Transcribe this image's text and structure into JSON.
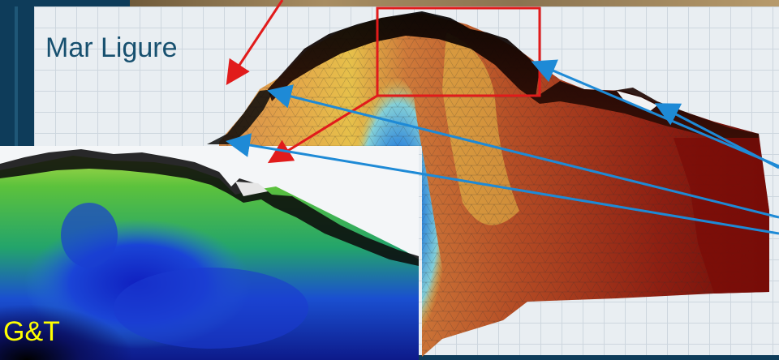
{
  "labels": {
    "sea_name": "Mar Ligure",
    "inset_tag": "G&T"
  },
  "colors": {
    "slide_background": "#0e3c5a",
    "label_text": "#17506f",
    "inset_tag_text": "#ffff00",
    "zoom_box": "#e11b1b",
    "red_arrow": "#e11b1b",
    "blue_arrow": "#1e8ad6",
    "grid_background": "#e9eef2"
  },
  "icons": {
    "red_arrow": "arrow-pointer",
    "blue_arrow": "arrow-pointer"
  }
}
